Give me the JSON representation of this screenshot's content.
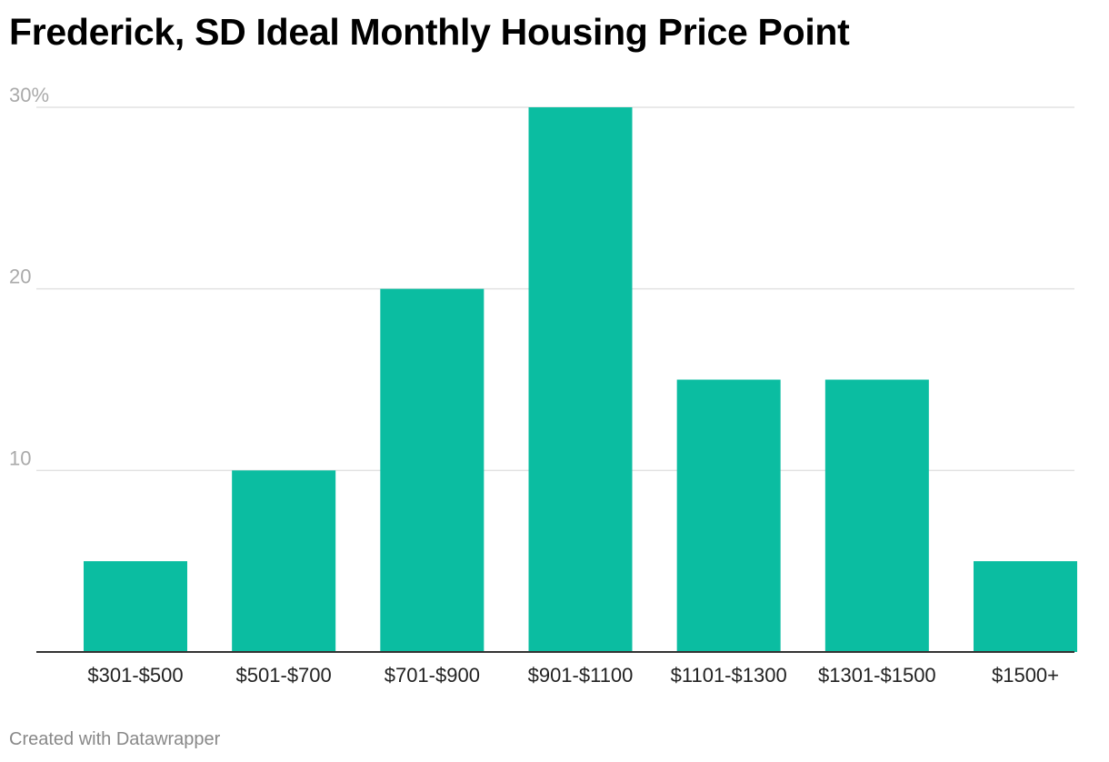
{
  "chart_data": {
    "type": "bar",
    "title": "Frederick, SD Ideal Monthly Housing Price Point",
    "categories": [
      "$301-$500",
      "$501-$700",
      "$701-$900",
      "$901-$1100",
      "$1101-$1300",
      "$1301-$1500",
      "$1500+"
    ],
    "values": [
      5,
      10,
      20,
      30,
      15,
      15,
      5
    ],
    "ylim": [
      0,
      30
    ],
    "yticks": [
      {
        "value": 10,
        "label": "10"
      },
      {
        "value": 20,
        "label": "20"
      },
      {
        "value": 30,
        "label": "30%"
      }
    ],
    "xlabel": "",
    "ylabel": "",
    "grid": true,
    "bar_color": "#0bbda1",
    "grid_color": "#e2e2e2",
    "axis_color": "#333333"
  },
  "footer": {
    "credit": "Created with Datawrapper"
  }
}
